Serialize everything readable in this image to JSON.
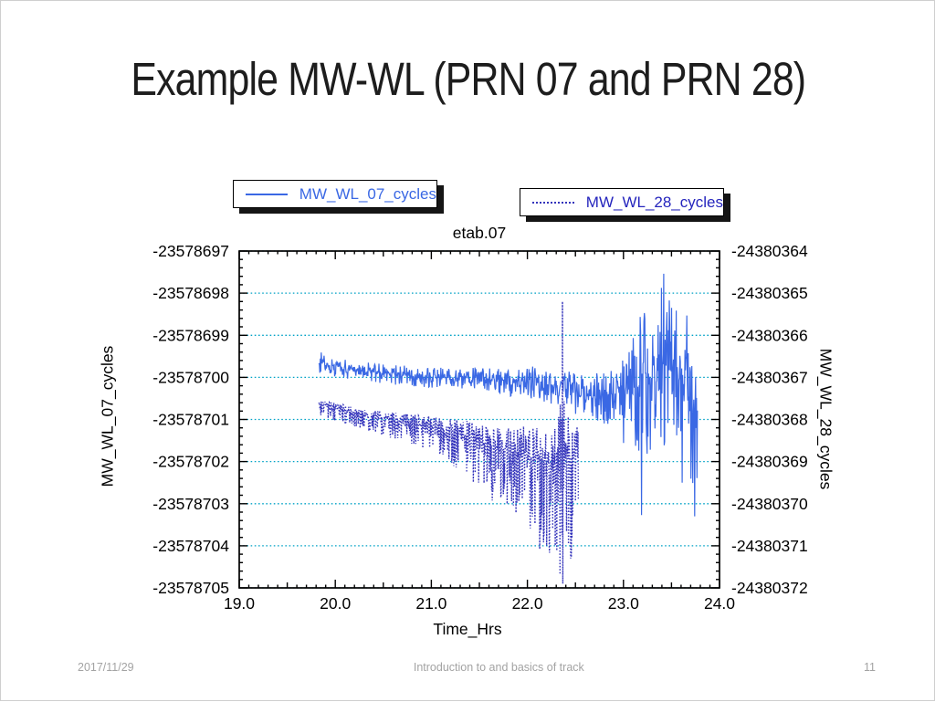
{
  "slide": {
    "title": "Example MW-WL (PRN 07 and PRN 28)",
    "footer": {
      "date": "2017/11/29",
      "center": "Introduction to and basics of track",
      "page": "11"
    }
  },
  "legend": [
    {
      "label": "MW_WL_07_cycles",
      "style": "solid",
      "color": "#3a68e4"
    },
    {
      "label": "MW_WL_28_cycles",
      "style": "dotted",
      "color": "#3333bb"
    }
  ],
  "chart_data": {
    "type": "line",
    "title": "etab.07",
    "xlabel": "Time_Hrs",
    "x_range": [
      19.0,
      24.0
    ],
    "x_tick_labels": [
      "19.0",
      "20.0",
      "21.0",
      "22.0",
      "23.0",
      "24.0"
    ],
    "x_minor_step": 0.1,
    "grid": "horizontal-dotted",
    "grid_color": "#00a2c6",
    "frame_color": "#000000",
    "left_axis": {
      "label": "MW_WL_07_cycles",
      "range": [
        -23578705,
        -23578697
      ],
      "ticks": [
        -23578697,
        -23578698,
        -23578699,
        -23578700,
        -23578701,
        -23578702,
        -23578703,
        -23578704,
        -23578705
      ],
      "minor_step": 0.2
    },
    "right_axis": {
      "label": "MW_WL_28_cycles",
      "range": [
        -24380372,
        -24380364
      ],
      "ticks": [
        -24380364,
        -24380365,
        -24380366,
        -24380367,
        -24380368,
        -24380369,
        -24380370,
        -24380371,
        -24380372
      ],
      "minor_step": 0.2
    },
    "series": [
      {
        "name": "MW_WL_07_cycles",
        "axis": "left",
        "line": "solid",
        "color": "#3a68e4",
        "t_start": 19.83,
        "t_end": 23.77,
        "envelope": [
          [
            19.83,
            -23578699.62,
            0.28
          ],
          [
            20.1,
            -23578699.78,
            0.25
          ],
          [
            20.5,
            -23578699.9,
            0.25
          ],
          [
            21.0,
            -23578700.0,
            0.25
          ],
          [
            21.5,
            -23578700.02,
            0.3
          ],
          [
            21.9,
            -23578700.1,
            0.4
          ],
          [
            22.3,
            -23578700.18,
            0.5
          ],
          [
            22.55,
            -23578700.45,
            0.55
          ],
          [
            22.9,
            -23578700.4,
            0.75
          ],
          [
            23.1,
            -23578700.25,
            1.3
          ],
          [
            23.2,
            -23578700.2,
            2.2
          ],
          [
            23.32,
            -23578699.95,
            1.8
          ],
          [
            23.42,
            -23578699.6,
            2.2
          ],
          [
            23.52,
            -23578699.85,
            1.9
          ],
          [
            23.62,
            -23578700.1,
            1.9
          ],
          [
            23.7,
            -23578700.4,
            2.0
          ],
          [
            23.77,
            -23578700.7,
            2.2
          ]
        ],
        "spikes": [
          [
            23.0,
            -23578701.56
          ],
          [
            23.19,
            -23578703.27
          ],
          [
            23.42,
            -23578697.54
          ],
          [
            23.61,
            -23578702.5
          ],
          [
            23.74,
            -23578703.3
          ]
        ]
      },
      {
        "name": "MW_WL_28_cycles",
        "axis": "right",
        "line": "dotted",
        "color": "#3333bb",
        "t_start": 19.83,
        "t_end": 22.53,
        "envelope": [
          [
            19.83,
            -24380367.6,
            0.3
          ],
          [
            20.2,
            -24380367.85,
            0.35
          ],
          [
            20.6,
            -24380368.0,
            0.45
          ],
          [
            21.0,
            -24380368.15,
            0.6
          ],
          [
            21.3,
            -24380368.35,
            0.9
          ],
          [
            21.6,
            -24380368.6,
            1.3
          ],
          [
            21.9,
            -24380368.8,
            1.7
          ],
          [
            22.1,
            -24380368.95,
            2.1
          ],
          [
            22.3,
            -24380369.1,
            2.5
          ],
          [
            22.37,
            -24380368.6,
            3.4
          ],
          [
            22.44,
            -24380369.0,
            2.5
          ],
          [
            22.53,
            -24380368.9,
            1.9
          ]
        ],
        "spikes": [
          [
            22.2,
            -24380371.0
          ],
          [
            22.365,
            -24380365.2
          ],
          [
            22.37,
            -24380371.9
          ],
          [
            22.45,
            -24380371.3
          ]
        ]
      }
    ]
  }
}
